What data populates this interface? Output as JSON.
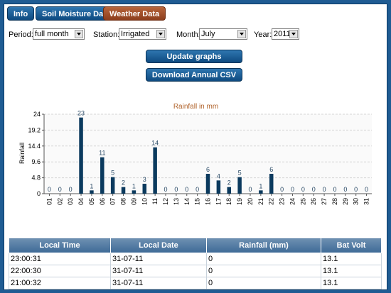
{
  "tabs": [
    {
      "label": "Info"
    },
    {
      "label": "Soil Moisture Data"
    },
    {
      "label": "Weather Data"
    }
  ],
  "controls": {
    "period_label": "Period:",
    "period_value": "full month",
    "station_label": "Station:",
    "station_value": "Irrigated",
    "month_label": "Month:",
    "month_value": "July",
    "year_label": "Year:",
    "year_value": "2011"
  },
  "buttons": {
    "update_label": "Update graphs",
    "download_label": "Download Annual CSV"
  },
  "colors": {
    "accent_tab": "#a04a25",
    "bar": "#0b3a5e",
    "title": "#b0622a"
  },
  "chart_data": {
    "type": "bar",
    "title": "Rainfall in mm",
    "ylabel": "Rainfall",
    "xlabel": "",
    "ylim": [
      0,
      24
    ],
    "yticks": [
      0,
      4.8,
      9.6,
      14.4,
      19.2,
      24
    ],
    "grid": true,
    "categories": [
      "01",
      "02",
      "03",
      "04",
      "05",
      "06",
      "07",
      "08",
      "09",
      "10",
      "11",
      "12",
      "13",
      "14",
      "15",
      "16",
      "17",
      "18",
      "19",
      "20",
      "21",
      "22",
      "23",
      "24",
      "25",
      "26",
      "27",
      "28",
      "29",
      "30",
      "31"
    ],
    "values": [
      0,
      0,
      0,
      23,
      1,
      11,
      5,
      2,
      1,
      3,
      14,
      0,
      0,
      0,
      0,
      6,
      4,
      2,
      5,
      0,
      1,
      6,
      0,
      0,
      0,
      0,
      0,
      0,
      0,
      0,
      0
    ]
  },
  "table": {
    "headers": [
      "Local Time",
      "Local Date",
      "Rainfall (mm)",
      "Bat Volt"
    ],
    "rows": [
      [
        "23:00:31",
        "31-07-11",
        "0",
        "13.1"
      ],
      [
        "22:00:30",
        "31-07-11",
        "0",
        "13.1"
      ],
      [
        "21:00:32",
        "31-07-11",
        "0",
        "13.1"
      ]
    ]
  }
}
